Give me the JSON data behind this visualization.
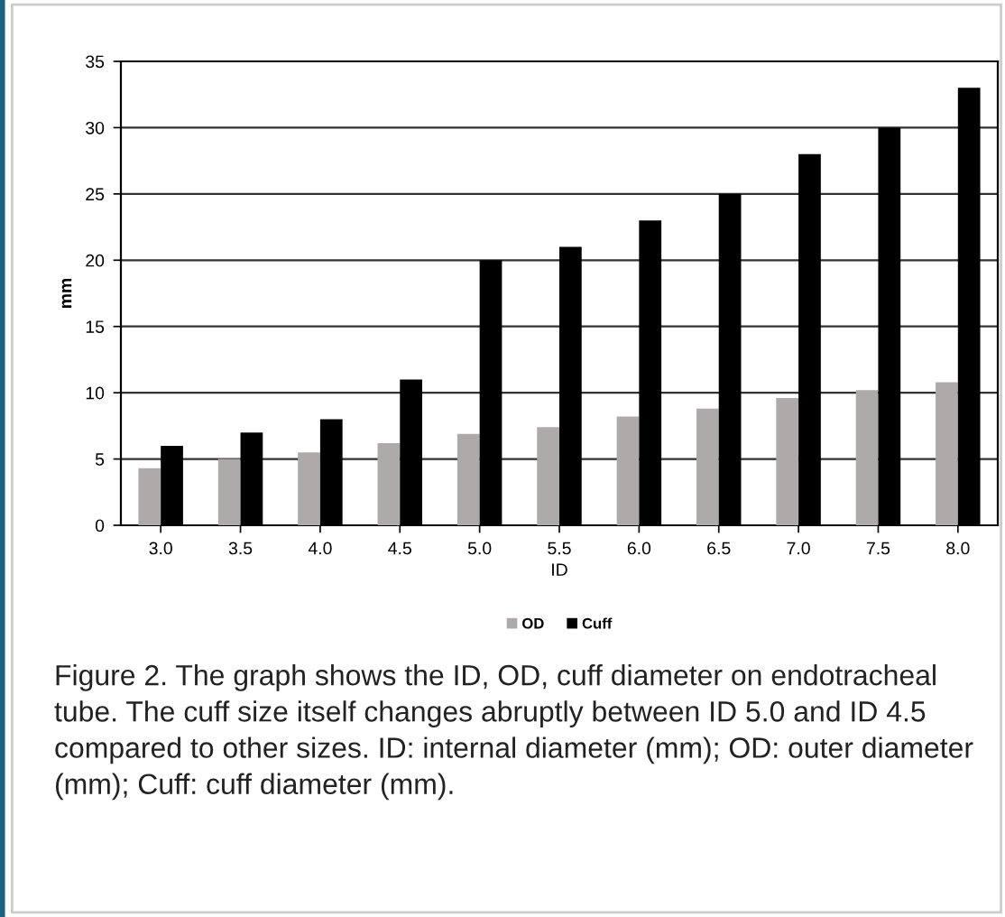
{
  "chart_data": {
    "type": "bar",
    "xlabel": "ID",
    "ylabel": "mm",
    "categories": [
      "3.0",
      "3.5",
      "4.0",
      "4.5",
      "5.0",
      "5.5",
      "6.0",
      "6.5",
      "7.0",
      "7.5",
      "8.0"
    ],
    "series": [
      {
        "name": "OD",
        "color": "#aeaaaa",
        "values": [
          4.3,
          5.0,
          5.5,
          6.2,
          6.9,
          7.4,
          8.2,
          8.8,
          9.6,
          10.2,
          10.8
        ]
      },
      {
        "name": "Cuff",
        "color": "#000000",
        "values": [
          6,
          7,
          8,
          11,
          20,
          21,
          23,
          25,
          28,
          30,
          33
        ]
      }
    ],
    "ylim": [
      0,
      35
    ],
    "yticks": [
      0,
      5,
      10,
      15,
      20,
      25,
      30,
      35
    ],
    "grid": "y",
    "legend": "bottom",
    "annotations": [
      "Figure 2. The graph shows the ID, OD, cuff diameter on endotracheal tube. The cuff size itself changes abruptly between ID 5.0 and ID 4.5 compared to other sizes. ID: internal diameter (mm); OD: outer diameter (mm); Cuff: cuff diameter (mm)."
    ]
  }
}
